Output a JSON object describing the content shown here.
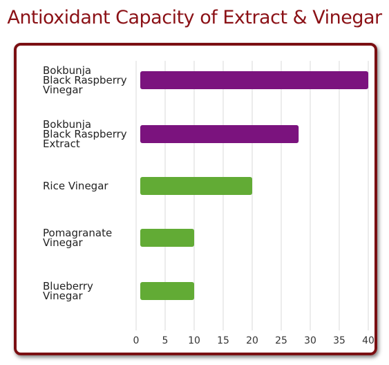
{
  "chart_data": {
    "type": "hbar",
    "title": "Antioxidant Capacity of Extract & Vinegar",
    "categories": [
      "Bokbunja\nBlack Raspberry\nVinegar",
      "Bokbunja\nBlack Raspberry\nExtract",
      "Rice Vinegar",
      "Pomagranate\nVinegar",
      "Blueberry\nVinegar"
    ],
    "values": [
      40,
      28,
      20,
      10,
      10
    ],
    "colors": [
      "#7b137e",
      "#7b137e",
      "#62ab35",
      "#62ab35",
      "#62ab35"
    ],
    "xlim": [
      0,
      40
    ],
    "xticks": [
      0,
      5,
      10,
      15,
      20,
      25,
      30,
      35,
      40
    ],
    "grid": true
  }
}
